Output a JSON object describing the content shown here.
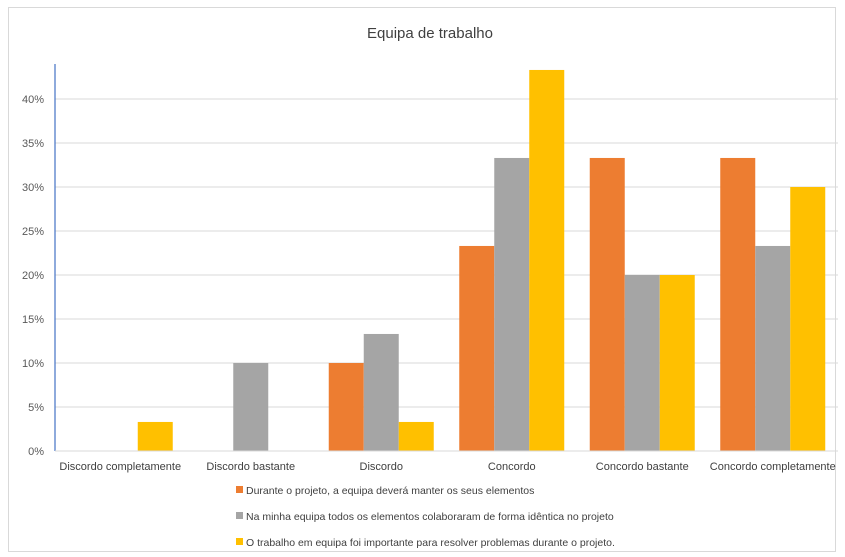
{
  "chart_data": {
    "type": "bar",
    "title": "Equipa de trabalho",
    "xlabel": "",
    "ylabel": "",
    "categories": [
      "Discordo completamente",
      "Discordo bastante",
      "Discordo",
      "Concordo",
      "Concordo bastante",
      "Concordo completamente"
    ],
    "series": [
      {
        "name": "Durante o projeto, a equipa deverá  manter os seus elementos",
        "color": "#ED7D31",
        "values": [
          0,
          0,
          10.0,
          23.3,
          33.3,
          33.3
        ]
      },
      {
        "name": "Na minha equipa todos os elementos colaboraram de forma idêntica no projeto",
        "color": "#A5A5A5",
        "values": [
          0,
          10.0,
          13.3,
          33.3,
          20.0,
          23.3
        ]
      },
      {
        "name": "O trabalho em equipa foi importante para resolver problemas durante o projeto.",
        "color": "#FFC000",
        "values": [
          3.3,
          0,
          3.3,
          43.3,
          20.0,
          30.0
        ]
      }
    ],
    "ylim": [
      0,
      45
    ],
    "yticks": [
      0,
      5,
      10,
      15,
      20,
      25,
      30,
      35,
      40
    ],
    "ytick_labels": [
      "0%",
      "5%",
      "10%",
      "15%",
      "20%",
      "25%",
      "30%",
      "35%",
      "40%"
    ],
    "grid": true,
    "legend_position": "bottom"
  }
}
